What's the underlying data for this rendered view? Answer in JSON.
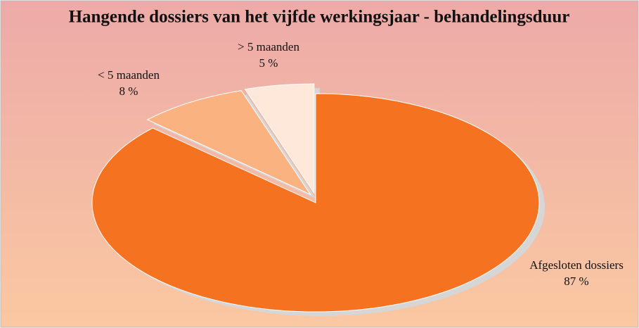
{
  "chart_data": {
    "type": "pie",
    "title": "Hangende dossiers van het vijfde werkingsjaar - behandelingsduur",
    "categories": [
      "Afgesloten dossiers",
      "< 5 maanden",
      "> 5 maanden"
    ],
    "values": [
      87,
      8,
      5
    ],
    "value_labels": [
      "87 %",
      "8 %",
      "5 %"
    ],
    "colors": [
      "#f47220",
      "#f9b280",
      "#fde8d9"
    ]
  }
}
